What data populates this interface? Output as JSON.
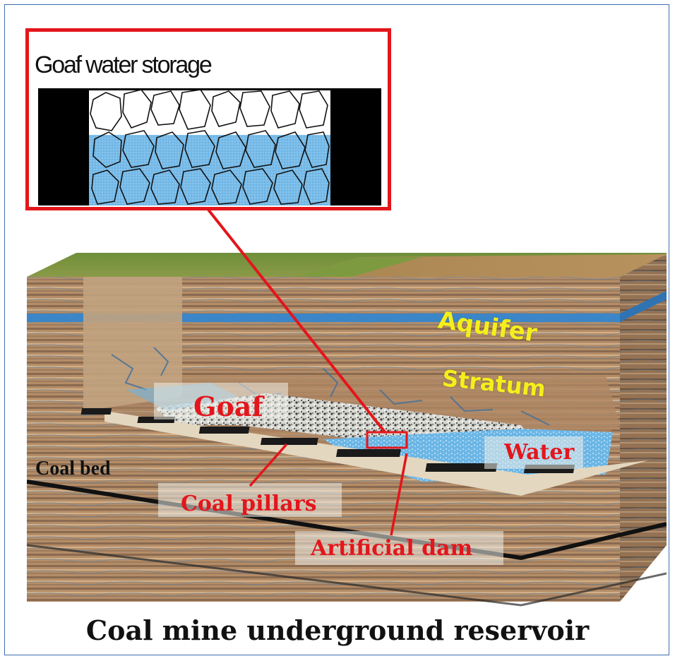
{
  "inset": {
    "title": "Goaf water storage"
  },
  "labels": {
    "aquifer": "Aquifer",
    "stratum": "Stratum",
    "goaf": "Goaf",
    "water": "Water",
    "coal_bed": "Coal bed",
    "coal_pillars": "Coal pillars",
    "artificial_dam": "Artificial dam"
  },
  "caption": "Coal mine underground reservoir",
  "colors": {
    "highlight_red": "#e3161b",
    "label_red": "#e3161b",
    "label_yellow": "#f4ef1c",
    "water_blue": "#7fbfe8",
    "aquifer_blue": "#3b86c8"
  }
}
